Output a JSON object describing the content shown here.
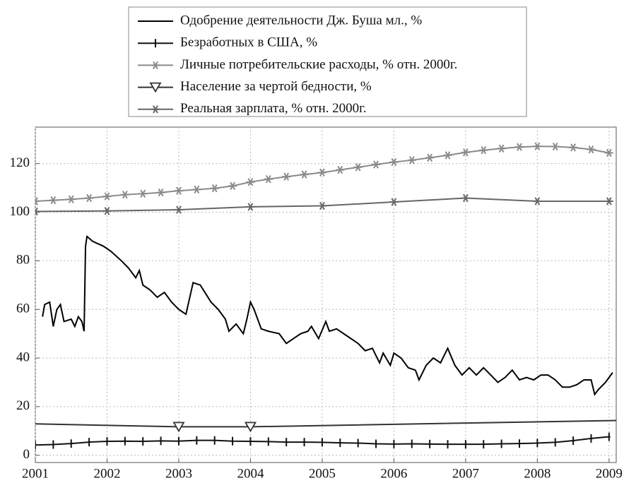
{
  "chart_data": {
    "type": "line",
    "xlim": [
      2001,
      2009.1
    ],
    "xticks": [
      2001,
      2002,
      2003,
      2004,
      2005,
      2006,
      2007,
      2008,
      2009
    ],
    "ylim": [
      -3,
      135
    ],
    "yticks": [
      0,
      20,
      40,
      60,
      80,
      100,
      120
    ],
    "grid": true,
    "legend": "top",
    "series": [
      {
        "name": "Одобрение деятельности Дж. Буша мл., %",
        "color": "#000000",
        "marker": "none",
        "x": [
          2001.1,
          2001.13,
          2001.2,
          2001.25,
          2001.3,
          2001.35,
          2001.4,
          2001.5,
          2001.55,
          2001.6,
          2001.65,
          2001.68,
          2001.7,
          2001.72,
          2001.8,
          2001.95,
          2002.05,
          2002.2,
          2002.3,
          2002.4,
          2002.45,
          2002.5,
          2002.6,
          2002.7,
          2002.8,
          2002.9,
          2003.0,
          2003.1,
          2003.2,
          2003.3,
          2003.45,
          2003.55,
          2003.65,
          2003.7,
          2003.8,
          2003.9,
          2003.95,
          2004.0,
          2004.05,
          2004.15,
          2004.25,
          2004.4,
          2004.5,
          2004.6,
          2004.7,
          2004.8,
          2004.85,
          2004.95,
          2005.05,
          2005.1,
          2005.2,
          2005.35,
          2005.5,
          2005.6,
          2005.7,
          2005.8,
          2005.85,
          2005.95,
          2006.0,
          2006.1,
          2006.2,
          2006.3,
          2006.35,
          2006.45,
          2006.55,
          2006.65,
          2006.75,
          2006.85,
          2006.95,
          2007.05,
          2007.15,
          2007.25,
          2007.35,
          2007.45,
          2007.55,
          2007.65,
          2007.75,
          2007.85,
          2007.95,
          2008.05,
          2008.15,
          2008.25,
          2008.35,
          2008.45,
          2008.55,
          2008.65,
          2008.75,
          2008.8,
          2008.85,
          2008.95,
          2009.05
        ],
        "values": [
          57,
          62,
          63,
          53,
          60,
          62,
          55,
          56,
          53,
          57,
          55,
          51,
          86,
          90,
          88,
          86,
          84,
          80,
          77,
          73,
          76,
          70,
          68,
          65,
          67,
          63,
          60,
          58,
          71,
          70,
          63,
          60,
          56,
          51,
          54,
          50,
          56,
          63,
          60,
          52,
          51,
          50,
          46,
          48,
          50,
          51,
          53,
          48,
          55,
          51,
          52,
          49,
          46,
          43,
          44,
          38,
          42,
          37,
          42,
          40,
          36,
          35,
          31,
          37,
          40,
          38,
          44,
          37,
          33,
          36,
          33,
          36,
          33,
          30,
          32,
          35,
          31,
          32,
          31,
          33,
          33,
          31,
          28,
          28,
          29,
          31,
          31,
          25,
          27,
          30,
          34
        ]
      },
      {
        "name": "Безработных в США, %",
        "color": "#111111",
        "marker": "+",
        "x": [
          2001,
          2001.25,
          2001.5,
          2001.75,
          2002,
          2002.25,
          2002.5,
          2002.75,
          2003,
          2003.25,
          2003.5,
          2003.75,
          2004,
          2004.25,
          2004.5,
          2004.75,
          2005,
          2005.25,
          2005.5,
          2005.75,
          2006,
          2006.25,
          2006.5,
          2006.75,
          2007,
          2007.25,
          2007.5,
          2007.75,
          2008,
          2008.25,
          2008.5,
          2008.75,
          2009
        ],
        "values": [
          4.2,
          4.4,
          4.8,
          5.4,
          5.7,
          5.8,
          5.7,
          5.9,
          5.8,
          6.1,
          6.1,
          5.8,
          5.7,
          5.6,
          5.4,
          5.4,
          5.3,
          5.1,
          5.0,
          4.7,
          4.6,
          4.7,
          4.6,
          4.5,
          4.5,
          4.5,
          4.7,
          4.8,
          5.0,
          5.3,
          6.0,
          6.9,
          7.6
        ]
      },
      {
        "name": "Личные потребительские расходы, % отн. 2000г.",
        "color": "#8a8a8a",
        "marker": "*",
        "x": [
          2001,
          2001.25,
          2001.5,
          2001.75,
          2002,
          2002.25,
          2002.5,
          2002.75,
          2003,
          2003.25,
          2003.5,
          2003.75,
          2004,
          2004.25,
          2004.5,
          2004.75,
          2005,
          2005.25,
          2005.5,
          2005.75,
          2006,
          2006.25,
          2006.5,
          2006.75,
          2007,
          2007.25,
          2007.5,
          2007.75,
          2008,
          2008.25,
          2008.5,
          2008.75,
          2009
        ],
        "values": [
          104.5,
          104.9,
          105.3,
          105.8,
          106.5,
          107.2,
          107.6,
          108.1,
          108.8,
          109.3,
          109.8,
          110.8,
          112.4,
          113.6,
          114.6,
          115.5,
          116.3,
          117.4,
          118.5,
          119.6,
          120.6,
          121.4,
          122.4,
          123.4,
          124.6,
          125.5,
          126.2,
          126.8,
          127.1,
          127.0,
          126.6,
          125.8,
          124.4
        ]
      },
      {
        "name": "Население за чертой бедности, %",
        "color": "#333333",
        "marker": "v",
        "x": [
          2003,
          2004
        ],
        "line_x": [
          2001,
          2003,
          2004,
          2009.1
        ],
        "line_values": [
          12.9,
          11.7,
          11.7,
          14.3
        ],
        "values": [
          11.7,
          11.7
        ]
      },
      {
        "name": "Реальная зарплата, % отн. 2000г.",
        "color": "#666666",
        "marker": "*",
        "x": [
          2001,
          2002,
          2003,
          2004,
          2005,
          2006,
          2007,
          2008,
          2009
        ],
        "values": [
          100.3,
          100.5,
          101,
          102.2,
          102.6,
          104.2,
          105.8,
          104.5,
          104.5
        ]
      }
    ]
  }
}
